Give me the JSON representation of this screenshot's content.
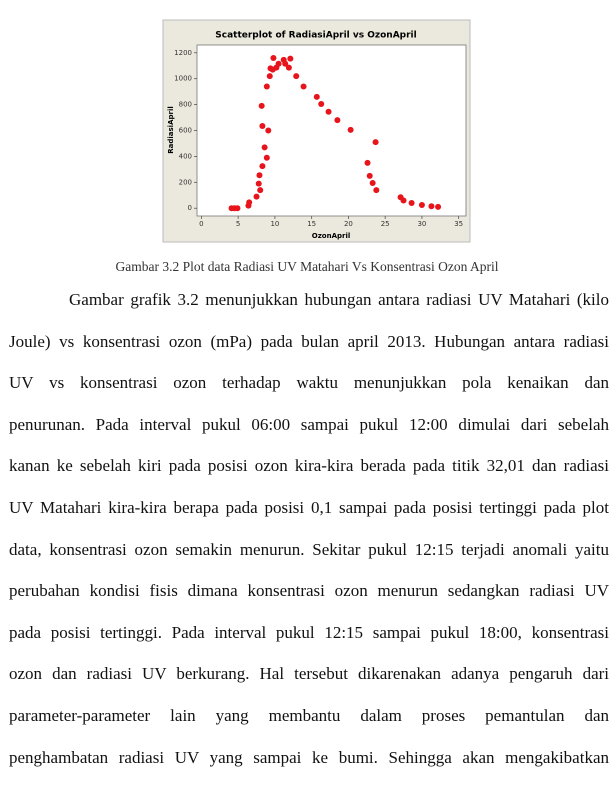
{
  "chart_data": {
    "type": "scatter",
    "title": "Scatterplot of RadiasiApril vs OzonApril",
    "x_label": "OzonApril",
    "y_label": "RadiasiApril",
    "x": [
      4.1,
      4.5,
      4.9,
      6.4,
      6.5,
      7.5,
      7.8,
      8.0,
      7.9,
      8.3,
      8.9,
      8.6,
      9.1,
      8.3,
      8.2,
      8.9,
      9.3,
      9.7,
      9.8,
      9.4,
      10.2,
      10.5,
      11.2,
      11.4,
      11.9,
      12.1,
      12.9,
      13.9,
      15.7,
      16.3,
      17.3,
      18.5,
      20.3,
      23.7,
      22.6,
      22.9,
      23.3,
      23.8,
      27.1,
      27.5,
      28.6,
      30.0,
      31.3,
      32.2
    ],
    "values": [
      0,
      0,
      0,
      20,
      45,
      90,
      190,
      140,
      255,
      325,
      390,
      470,
      600,
      635,
      790,
      940,
      1020,
      1070,
      1160,
      1080,
      1085,
      1115,
      1145,
      1115,
      1085,
      1155,
      1020,
      940,
      860,
      805,
      745,
      680,
      605,
      510,
      350,
      250,
      195,
      140,
      85,
      60,
      40,
      25,
      15,
      10
    ],
    "color": "#e8141c",
    "xlim": [
      -0.6,
      36
    ],
    "xticks": [
      0,
      5,
      10,
      15,
      20,
      25,
      30,
      35
    ],
    "ylim": [
      -60,
      1260
    ],
    "yticks": [
      0,
      200,
      400,
      600,
      800,
      1000,
      1200
    ]
  },
  "caption": "Gambar 3.2 Plot data Radiasi UV Matahari Vs Konsentrasi Ozon April",
  "paragraph": [
    "Gambar grafik 3.2 menunjukkan hubungan antara radiasi UV Matahari (kilo",
    "Joule) vs konsentrasi ozon (mPa) pada bulan april 2013. Hubungan antara radiasi",
    "UV vs konsentrasi ozon terhadap waktu menunjukkan pola kenaikan dan",
    "penurunan. Pada interval pukul 06:00 sampai pukul 12:00 dimulai dari sebelah",
    "kanan ke sebelah kiri pada posisi ozon kira-kira berada pada titik 32,01 dan radiasi",
    "UV Matahari kira-kira berapa pada posisi 0,1 sampai pada posisi tertinggi pada plot",
    "data, konsentrasi ozon semakin menurun. Sekitar pukul 12:15 terjadi anomali yaitu",
    "perubahan kondisi fisis dimana konsentrasi ozon menurun sedangkan radiasi UV",
    "pada posisi tertinggi. Pada interval pukul 12:15 sampai pukul 18:00, konsentrasi",
    "ozon dan radiasi UV berkurang. Hal tersebut dikarenakan adanya pengaruh dari",
    "parameter-parameter lain yang membantu dalam proses pemantulan dan",
    "penghambatan radiasi UV yang sampai ke bumi. Sehingga akan mengakibatkan"
  ]
}
